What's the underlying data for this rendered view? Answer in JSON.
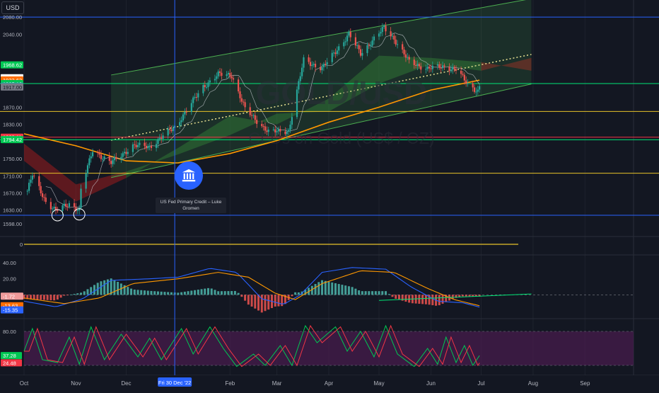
{
  "header": {
    "currency": "USD"
  },
  "watermark": {
    "line1": "GOLD/USD",
    "line2": "CFDs on Gold (US$ / OZ)"
  },
  "annotation": {
    "text": "US Fed Primary Credit – Luke Gromen",
    "icon": "bank-icon"
  },
  "colors": {
    "background": "#131722",
    "grid": "#1e222d",
    "up": "#26a69a",
    "down": "#ef5350",
    "channel": "#4caf50",
    "sma200": "#ff9800",
    "blue_line": "#2962ff",
    "yellow_line": "#e6c229",
    "red_line": "#f23645",
    "green_line": "#00e676",
    "rsi_band": "#4a1d4e"
  },
  "chart_data": [
    {
      "type": "candlestick",
      "pane": "price",
      "y_axis": {
        "range": [
          1585,
          2110
        ],
        "ticks": [
          "2080.00",
          "2040.00",
          "1870.00",
          "1830.00",
          "1750.00",
          "1710.00",
          "1670.00",
          "1630.00",
          "1598.00"
        ]
      },
      "x_axis": {
        "range": [
          "2022-10-01",
          "2023-09-30"
        ],
        "ticks": [
          {
            "date": "2022-10-01",
            "label": "Oct"
          },
          {
            "date": "2022-11-01",
            "label": "Nov"
          },
          {
            "date": "2022-12-01",
            "label": "Dec"
          },
          {
            "date": "2023-02-01",
            "label": "Feb"
          },
          {
            "date": "2023-03-01",
            "label": "Mar"
          },
          {
            "date": "2023-04-01",
            "label": "Apr"
          },
          {
            "date": "2023-05-01",
            "label": "May"
          },
          {
            "date": "2023-06-01",
            "label": "Jun"
          },
          {
            "date": "2023-07-01",
            "label": "Jul"
          },
          {
            "date": "2023-08-01",
            "label": "Aug"
          },
          {
            "date": "2023-09-01",
            "label": "Sep"
          }
        ],
        "cursor_label": "Fri 30 Dec '22"
      },
      "price_labels": [
        {
          "value": 1968.62,
          "label": "1968.62",
          "color": "#00c853"
        },
        {
          "value": 1938.7,
          "label": "1938.70",
          "color": "#ffffff"
        },
        {
          "value": 1933.63,
          "label": "1933.63",
          "color": "#ff6d00"
        },
        {
          "value": 1925.12,
          "label": "1925.12",
          "color": "#00c853"
        },
        {
          "value": 1919.36,
          "label": "1919.36",
          "color": "#26a69a"
        },
        {
          "value": 1918.3,
          "label": "42:05",
          "color": "#26a69a"
        },
        {
          "value": 1917.0,
          "label": "1917.00",
          "color": "#787b86"
        },
        {
          "value": 1800.11,
          "label": "1800.11",
          "color": "#f23645"
        },
        {
          "value": 1794.42,
          "label": "1794.42",
          "color": "#00c853"
        }
      ],
      "horizontal_levels": [
        {
          "value": 2080,
          "color": "#2962ff"
        },
        {
          "value": 1925,
          "color": "#00e676"
        },
        {
          "value": 1860,
          "color": "#e6c229"
        },
        {
          "value": 1800,
          "color": "#f23645"
        },
        {
          "value": 1794,
          "color": "#00e676"
        },
        {
          "value": 1716,
          "color": "#e6c229"
        },
        {
          "value": 1618,
          "color": "#2962ff"
        }
      ],
      "channel": {
        "upper": [
          {
            "date": "2022-11-22",
            "value": 1945
          },
          {
            "date": "2023-07-31",
            "value": 2123
          }
        ],
        "lower": [
          {
            "date": "2022-11-22",
            "value": 1706
          },
          {
            "date": "2023-07-31",
            "value": 1924
          }
        ]
      },
      "midline": [
        {
          "date": "2022-11-22",
          "value": 1793
        },
        {
          "date": "2023-07-31",
          "value": 1993
        }
      ],
      "sma200": [
        {
          "date": "2022-10-01",
          "value": 1808
        },
        {
          "date": "2022-11-01",
          "value": 1780
        },
        {
          "date": "2022-12-01",
          "value": 1745
        },
        {
          "date": "2023-01-01",
          "value": 1740
        },
        {
          "date": "2023-02-01",
          "value": 1762
        },
        {
          "date": "2023-03-01",
          "value": 1792
        },
        {
          "date": "2023-04-01",
          "value": 1835
        },
        {
          "date": "2023-05-01",
          "value": 1870
        },
        {
          "date": "2023-06-01",
          "value": 1910
        },
        {
          "date": "2023-06-30",
          "value": 1933
        }
      ],
      "cloud": [
        {
          "date": "2022-10-01",
          "a": 1745,
          "b": 1785
        },
        {
          "date": "2022-11-01",
          "a": 1650,
          "b": 1690
        },
        {
          "date": "2022-12-01",
          "a": 1705,
          "b": 1720
        },
        {
          "date": "2023-01-01",
          "a": 1775,
          "b": 1760
        },
        {
          "date": "2023-02-01",
          "a": 1850,
          "b": 1805
        },
        {
          "date": "2023-03-01",
          "a": 1830,
          "b": 1855
        },
        {
          "date": "2023-04-01",
          "a": 1890,
          "b": 1860
        },
        {
          "date": "2023-05-01",
          "a": 1990,
          "b": 1925
        },
        {
          "date": "2023-06-01",
          "a": 1985,
          "b": 1970
        },
        {
          "date": "2023-07-01",
          "a": 1975,
          "b": 1955
        },
        {
          "date": "2023-07-31",
          "a": 1955,
          "b": 1985
        }
      ],
      "close_anchors": [
        {
          "date": "2022-10-03",
          "value": 1675
        },
        {
          "date": "2022-10-06",
          "value": 1712
        },
        {
          "date": "2022-10-14",
          "value": 1650
        },
        {
          "date": "2022-10-20",
          "value": 1628
        },
        {
          "date": "2022-10-28",
          "value": 1645
        },
        {
          "date": "2022-11-03",
          "value": 1630
        },
        {
          "date": "2022-11-04",
          "value": 1678
        },
        {
          "date": "2022-11-11",
          "value": 1770
        },
        {
          "date": "2022-11-22",
          "value": 1740
        },
        {
          "date": "2022-12-05",
          "value": 1780
        },
        {
          "date": "2022-12-15",
          "value": 1778
        },
        {
          "date": "2022-12-30",
          "value": 1824
        },
        {
          "date": "2023-01-16",
          "value": 1918
        },
        {
          "date": "2023-01-25",
          "value": 1946
        },
        {
          "date": "2023-02-02",
          "value": 1945
        },
        {
          "date": "2023-02-10",
          "value": 1865
        },
        {
          "date": "2023-02-24",
          "value": 1812
        },
        {
          "date": "2023-03-08",
          "value": 1815
        },
        {
          "date": "2023-03-17",
          "value": 1980
        },
        {
          "date": "2023-03-28",
          "value": 1960
        },
        {
          "date": "2023-04-13",
          "value": 2040
        },
        {
          "date": "2023-04-20",
          "value": 1995
        },
        {
          "date": "2023-05-04",
          "value": 2055
        },
        {
          "date": "2023-05-10",
          "value": 2030
        },
        {
          "date": "2023-05-19",
          "value": 1975
        },
        {
          "date": "2023-05-30",
          "value": 1960
        },
        {
          "date": "2023-06-09",
          "value": 1965
        },
        {
          "date": "2023-06-16",
          "value": 1958
        },
        {
          "date": "2023-06-23",
          "value": 1923
        },
        {
          "date": "2023-06-29",
          "value": 1908
        },
        {
          "date": "2023-06-30",
          "value": 1919
        }
      ]
    },
    {
      "type": "line",
      "pane": "indicator",
      "y_axis": {
        "ticks": [
          "0"
        ]
      },
      "series": [
        {
          "values": [
            0
          ]
        }
      ]
    },
    {
      "type": "bar",
      "pane": "macd",
      "y_axis": {
        "range": [
          -28,
          48
        ],
        "ticks": [
          "40.00",
          "20.00"
        ]
      },
      "value_labels": [
        {
          "value": -1.72,
          "label": "-1.72",
          "color": "#ef9a9a"
        },
        {
          "value": -13.63,
          "label": "-13.63",
          "color": "#ff6d00"
        },
        {
          "value": -15.35,
          "label": "-15.35",
          "color": "#2962ff"
        }
      ],
      "macd_anchors": [
        {
          "date": "2022-10-01",
          "value": -8
        },
        {
          "date": "2022-10-20",
          "value": -15
        },
        {
          "date": "2022-11-05",
          "value": -5
        },
        {
          "date": "2022-11-22",
          "value": 18
        },
        {
          "date": "2022-12-15",
          "value": 20
        },
        {
          "date": "2023-01-01",
          "value": 22
        },
        {
          "date": "2023-01-20",
          "value": 33
        },
        {
          "date": "2023-02-05",
          "value": 28
        },
        {
          "date": "2023-02-20",
          "value": -5
        },
        {
          "date": "2023-03-05",
          "value": -12
        },
        {
          "date": "2023-03-15",
          "value": 0
        },
        {
          "date": "2023-03-28",
          "value": 28
        },
        {
          "date": "2023-04-15",
          "value": 34
        },
        {
          "date": "2023-05-05",
          "value": 32
        },
        {
          "date": "2023-05-20",
          "value": 10
        },
        {
          "date": "2023-06-05",
          "value": -8
        },
        {
          "date": "2023-06-20",
          "value": -10
        },
        {
          "date": "2023-06-30",
          "value": -15.35
        }
      ],
      "signal_anchors": [
        {
          "date": "2022-10-01",
          "value": -4
        },
        {
          "date": "2022-10-25",
          "value": -11
        },
        {
          "date": "2022-11-15",
          "value": -4
        },
        {
          "date": "2022-12-05",
          "value": 14
        },
        {
          "date": "2023-01-01",
          "value": 20
        },
        {
          "date": "2023-01-25",
          "value": 28
        },
        {
          "date": "2023-02-12",
          "value": 22
        },
        {
          "date": "2023-02-28",
          "value": 2
        },
        {
          "date": "2023-03-12",
          "value": -6
        },
        {
          "date": "2023-03-28",
          "value": 14
        },
        {
          "date": "2023-04-20",
          "value": 30
        },
        {
          "date": "2023-05-10",
          "value": 28
        },
        {
          "date": "2023-05-30",
          "value": 8
        },
        {
          "date": "2023-06-15",
          "value": -6
        },
        {
          "date": "2023-06-30",
          "value": -13.63
        }
      ],
      "trendline": [
        {
          "date": "2023-05-01",
          "value": -7
        },
        {
          "date": "2023-07-31",
          "value": 1
        }
      ]
    },
    {
      "type": "line",
      "pane": "rsi",
      "y_axis": {
        "range": [
          5,
          95
        ],
        "ticks": [
          "80.00"
        ]
      },
      "band": [
        20,
        80
      ],
      "value_labels": [
        {
          "value": 37.28,
          "label": "37.28",
          "color": "#00c853"
        },
        {
          "value": 24.48,
          "label": "24.48",
          "color": "#f23645"
        }
      ],
      "k_anchors": [
        {
          "date": "2022-10-01",
          "value": 45
        },
        {
          "date": "2022-10-06",
          "value": 85
        },
        {
          "date": "2022-10-12",
          "value": 30
        },
        {
          "date": "2022-10-21",
          "value": 25
        },
        {
          "date": "2022-10-28",
          "value": 70
        },
        {
          "date": "2022-11-03",
          "value": 22
        },
        {
          "date": "2022-11-10",
          "value": 88
        },
        {
          "date": "2022-11-18",
          "value": 30
        },
        {
          "date": "2022-11-28",
          "value": 75
        },
        {
          "date": "2022-12-08",
          "value": 35
        },
        {
          "date": "2022-12-15",
          "value": 68
        },
        {
          "date": "2022-12-22",
          "value": 30
        },
        {
          "date": "2023-01-03",
          "value": 85
        },
        {
          "date": "2023-01-10",
          "value": 40
        },
        {
          "date": "2023-01-20",
          "value": 88
        },
        {
          "date": "2023-01-28",
          "value": 50
        },
        {
          "date": "2023-02-05",
          "value": 18
        },
        {
          "date": "2023-02-15",
          "value": 40
        },
        {
          "date": "2023-02-22",
          "value": 20
        },
        {
          "date": "2023-03-03",
          "value": 55
        },
        {
          "date": "2023-03-10",
          "value": 20
        },
        {
          "date": "2023-03-18",
          "value": 90
        },
        {
          "date": "2023-03-25",
          "value": 60
        },
        {
          "date": "2023-04-05",
          "value": 88
        },
        {
          "date": "2023-04-12",
          "value": 45
        },
        {
          "date": "2023-04-20",
          "value": 80
        },
        {
          "date": "2023-04-28",
          "value": 35
        },
        {
          "date": "2023-05-05",
          "value": 90
        },
        {
          "date": "2023-05-12",
          "value": 40
        },
        {
          "date": "2023-05-22",
          "value": 18
        },
        {
          "date": "2023-05-30",
          "value": 50
        },
        {
          "date": "2023-06-05",
          "value": 22
        },
        {
          "date": "2023-06-10",
          "value": 70
        },
        {
          "date": "2023-06-16",
          "value": 25
        },
        {
          "date": "2023-06-21",
          "value": 55
        },
        {
          "date": "2023-06-26",
          "value": 20
        },
        {
          "date": "2023-06-30",
          "value": 37.28
        }
      ]
    }
  ]
}
